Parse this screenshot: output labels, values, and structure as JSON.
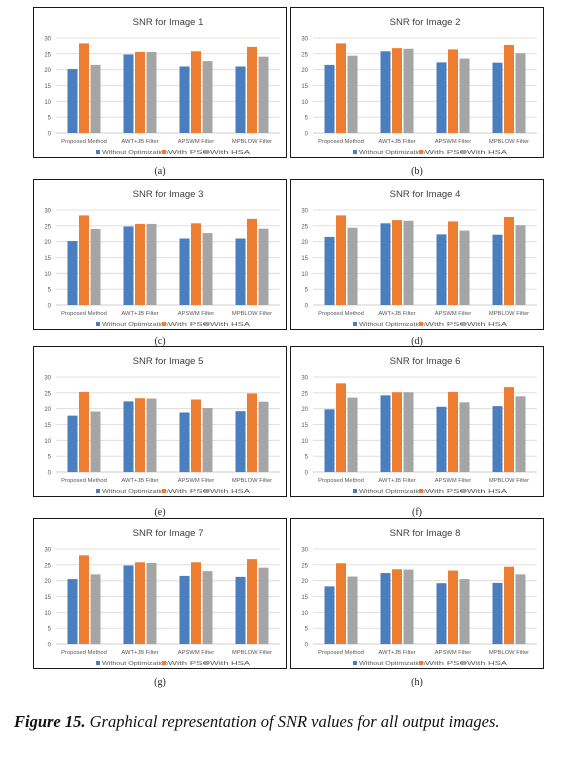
{
  "figure": {
    "caption_prefix": "Figure 15.",
    "caption_text": "Graphical representation of SNR values for all output images."
  },
  "colors": {
    "without": "#4a7ebf",
    "pso": "#ed7d31",
    "hsa": "#a5a5a5",
    "grid": "#d9d9d9",
    "axis_text": "#595959"
  },
  "chart_data": [
    {
      "type": "bar",
      "panel_label": "(a)",
      "title": "SNR for Image 1",
      "categories": [
        "Proposed Method",
        "AWT+JB Filter",
        "APSWM Filter",
        "MPBLOW Filter"
      ],
      "ylim": [
        0,
        30
      ],
      "yticks": [
        0,
        5,
        10,
        15,
        20,
        25,
        30
      ],
      "series": [
        {
          "name": "Without Optimization",
          "values": [
            20.2,
            24.8,
            21.0,
            21.0
          ]
        },
        {
          "name": "With PSO",
          "values": [
            28.3,
            25.6,
            25.8,
            27.2
          ]
        },
        {
          "name": "With HSA",
          "values": [
            21.5,
            25.6,
            22.7,
            24.1
          ]
        }
      ]
    },
    {
      "type": "bar",
      "panel_label": "(b)",
      "title": "SNR for Image 2",
      "categories": [
        "Proposed Method",
        "AWT+JB Filter",
        "APSWM Filter",
        "MPBLOW Filter"
      ],
      "ylim": [
        0,
        30
      ],
      "yticks": [
        0,
        5,
        10,
        15,
        20,
        25,
        30
      ],
      "series": [
        {
          "name": "Without Optimization",
          "values": [
            21.5,
            25.8,
            22.3,
            22.2
          ]
        },
        {
          "name": "With PSO",
          "values": [
            28.3,
            26.8,
            26.4,
            27.8
          ]
        },
        {
          "name": "With HSA",
          "values": [
            24.4,
            26.6,
            23.5,
            25.2
          ]
        }
      ]
    },
    {
      "type": "bar",
      "panel_label": "(c)",
      "title": "SNR for Image 3",
      "categories": [
        "Proposed Method",
        "AWT+JB Filter",
        "APSWM Filter",
        "MPBLOW Filter"
      ],
      "ylim": [
        0,
        30
      ],
      "yticks": [
        0,
        5,
        10,
        15,
        20,
        25,
        30
      ],
      "series": [
        {
          "name": "Without Optimization",
          "values": [
            20.2,
            24.8,
            21.0,
            21.0
          ]
        },
        {
          "name": "With PSO",
          "values": [
            28.3,
            25.6,
            25.8,
            27.2
          ]
        },
        {
          "name": "With HSA",
          "values": [
            24.0,
            25.6,
            22.7,
            24.1
          ]
        }
      ]
    },
    {
      "type": "bar",
      "panel_label": "(d)",
      "title": "SNR for Image 4",
      "categories": [
        "Proposed Method",
        "AWT+JB Filter",
        "APSWM Filter",
        "MPBLOW Filter"
      ],
      "ylim": [
        0,
        30
      ],
      "yticks": [
        0,
        5,
        10,
        15,
        20,
        25,
        30
      ],
      "series": [
        {
          "name": "Without Optimization",
          "values": [
            21.5,
            25.8,
            22.3,
            22.2
          ]
        },
        {
          "name": "With PSO",
          "values": [
            28.3,
            26.8,
            26.4,
            27.8
          ]
        },
        {
          "name": "With HSA",
          "values": [
            24.4,
            26.6,
            23.5,
            25.2
          ]
        }
      ]
    },
    {
      "type": "bar",
      "panel_label": "(e)",
      "title": "SNR for Image 5",
      "categories": [
        "Proposed Method",
        "AWT+JB Filter",
        "APSWM Filter",
        "MPBLOW Filter"
      ],
      "ylim": [
        0,
        30
      ],
      "yticks": [
        0,
        5,
        10,
        15,
        20,
        25,
        30
      ],
      "series": [
        {
          "name": "Without Optimization",
          "values": [
            17.8,
            22.3,
            18.8,
            19.2
          ]
        },
        {
          "name": "With PSO",
          "values": [
            25.3,
            23.3,
            22.9,
            24.8
          ]
        },
        {
          "name": "With HSA",
          "values": [
            19.1,
            23.2,
            20.2,
            22.2
          ]
        }
      ]
    },
    {
      "type": "bar",
      "panel_label": "(f)",
      "title": "SNR for Image 6",
      "categories": [
        "Proposed Method",
        "AWT+JB Filter",
        "APSWM Filter",
        "MPBLOW Filter"
      ],
      "ylim": [
        0,
        30
      ],
      "yticks": [
        0,
        5,
        10,
        15,
        20,
        25,
        30
      ],
      "series": [
        {
          "name": "Without Optimization",
          "values": [
            19.8,
            24.2,
            20.6,
            20.8
          ]
        },
        {
          "name": "With PSO",
          "values": [
            28.0,
            25.2,
            25.3,
            26.8
          ]
        },
        {
          "name": "With HSA",
          "values": [
            23.5,
            25.2,
            22.0,
            23.9
          ]
        }
      ]
    },
    {
      "type": "bar",
      "panel_label": "(g)",
      "title": "SNR for Image 7",
      "categories": [
        "Proposed Method",
        "AWT+JB Filter",
        "APSWM Filter",
        "MPBLOW Filter"
      ],
      "ylim": [
        0,
        30
      ],
      "yticks": [
        0,
        5,
        10,
        15,
        20,
        25,
        30
      ],
      "series": [
        {
          "name": "Without Optimization",
          "values": [
            20.5,
            24.8,
            21.5,
            21.2
          ]
        },
        {
          "name": "With PSO",
          "values": [
            28.0,
            25.8,
            25.8,
            26.8
          ]
        },
        {
          "name": "With HSA",
          "values": [
            22.0,
            25.6,
            23.0,
            24.1
          ]
        }
      ]
    },
    {
      "type": "bar",
      "panel_label": "(h)",
      "title": "SNR for Image 8",
      "categories": [
        "Proposed Method",
        "AWT+JB Filter",
        "APSWM Filter",
        "MPBLOW Filter"
      ],
      "ylim": [
        0,
        30
      ],
      "yticks": [
        0,
        5,
        10,
        15,
        20,
        25,
        30
      ],
      "series": [
        {
          "name": "Without Optimization",
          "values": [
            18.2,
            22.4,
            19.2,
            19.3
          ]
        },
        {
          "name": "With PSO",
          "values": [
            25.5,
            23.6,
            23.2,
            24.4
          ]
        },
        {
          "name": "With HSA",
          "values": [
            21.3,
            23.5,
            20.5,
            22.0
          ]
        }
      ]
    }
  ]
}
